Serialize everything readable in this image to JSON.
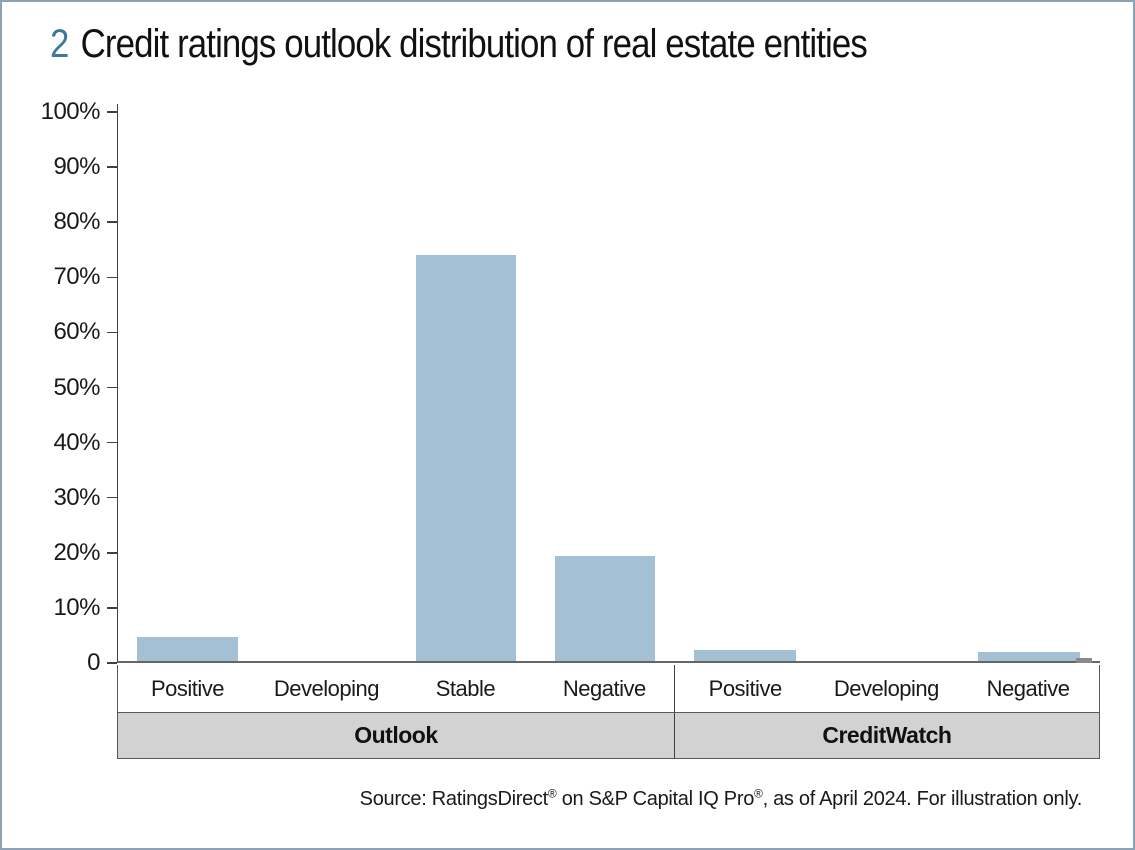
{
  "figure": {
    "number": "2",
    "title": "Credit ratings outlook distribution of real estate entities"
  },
  "source": {
    "p1": "Source: RatingsDirect",
    "r1": "®",
    "p2": " on S&P Capital IQ Pro",
    "r2": "®",
    "p3": ", as of April 2024. For illustration only."
  },
  "colors": {
    "bar": "#a3c0d4",
    "figure_number": "#3d7a9a",
    "band_fill": "#d2d2d2",
    "page_border": "#8ba3b5",
    "axis_line": "#666666"
  },
  "chart_data": {
    "type": "bar",
    "title": "Credit ratings outlook distribution of real estate entities",
    "categories": [
      "Positive",
      "Developing",
      "Stable",
      "Negative",
      "Positive",
      "Developing",
      "Negative"
    ],
    "groups": [
      {
        "label": "Outlook",
        "span": 4
      },
      {
        "label": "CreditWatch",
        "span": 3
      }
    ],
    "values": [
      4.3,
      0,
      73.7,
      19.0,
      2.0,
      0,
      1.6
    ],
    "unit": "%",
    "xlabel": "",
    "ylabel": "",
    "ylim": [
      0,
      100
    ],
    "ytick_step": 10,
    "yticks": [
      "100%",
      "90%",
      "80%",
      "70%",
      "60%",
      "50%",
      "40%",
      "30%",
      "20%",
      "10%",
      "0"
    ],
    "grid": false,
    "legend": null,
    "bar_color": "#a3c0d4"
  }
}
